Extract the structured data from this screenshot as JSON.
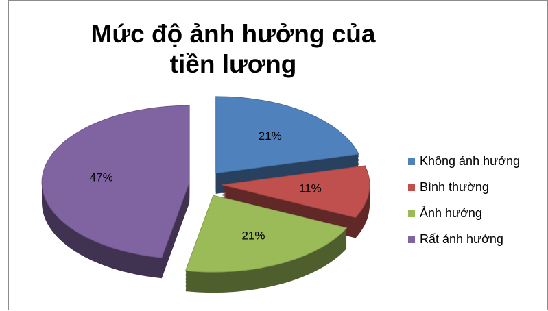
{
  "chart_data": {
    "type": "pie",
    "title": "Mức độ ảnh hưởng của tiền lương",
    "categories": [
      "Không ảnh hưởng",
      "Bình thường",
      "Ảnh hưởng",
      "Rất ảnh hưởng"
    ],
    "values": [
      21,
      11,
      21,
      47
    ],
    "value_labels": [
      "21%",
      "11%",
      "21%",
      "47%"
    ],
    "colors": [
      "#4f81bd",
      "#c0504d",
      "#9bbb59",
      "#8064a2"
    ],
    "legend": "right"
  }
}
